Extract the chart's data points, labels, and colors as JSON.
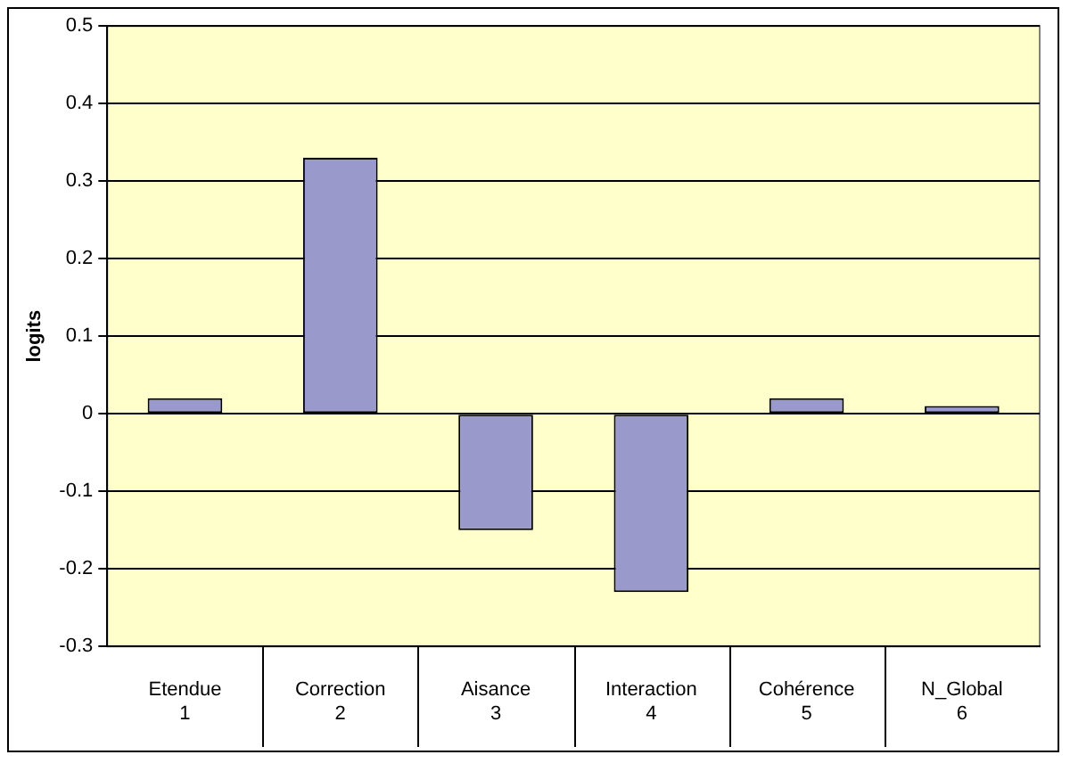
{
  "chart_data": {
    "type": "bar",
    "ylabel": "logits",
    "categories": [
      "Etendue\n1",
      "Correction\n2",
      "Aisance\n3",
      "Interaction\n4",
      "Cohérence\n5",
      "N_Global\n6"
    ],
    "values": [
      0.02,
      0.33,
      -0.15,
      -0.23,
      0.02,
      0.01
    ],
    "color": "#9999cc",
    "ylim": [
      -0.3,
      0.5
    ],
    "yticks": [
      -0.3,
      -0.2,
      -0.1,
      0,
      0.1,
      0.2,
      0.3,
      0.4,
      0.5
    ],
    "grid": "y",
    "legend": false
  }
}
